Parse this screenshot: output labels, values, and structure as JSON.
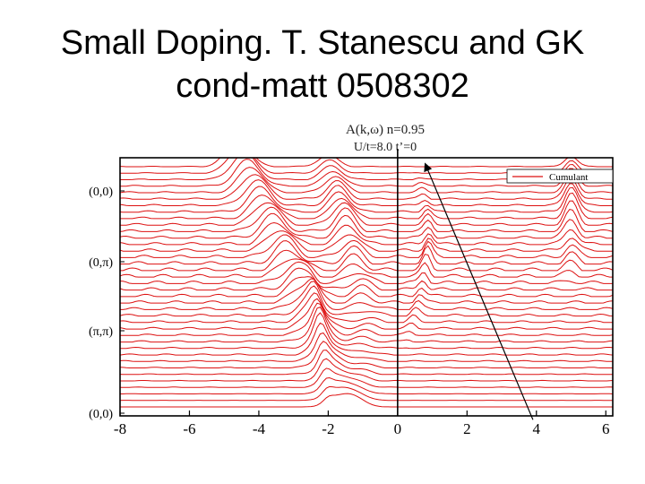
{
  "slide": {
    "title_line1": "Small Doping. T. Stanescu and GK",
    "title_line2": "cond-matt 0508302"
  },
  "chart_data": {
    "type": "line",
    "title": "A(k,ω) n=0.95",
    "subtitle": "U/t=8.0 t’=0",
    "xlabel": "",
    "ylabel": "",
    "xlim": [
      -8,
      6.2
    ],
    "x_ticks": [
      -8,
      -6,
      -4,
      -2,
      0,
      2,
      4,
      6
    ],
    "x_tick_labels": [
      "-8",
      "-6",
      "-4",
      "-2",
      "0",
      "2",
      "4",
      "6"
    ],
    "y_tick_labels": [
      "(0,0)",
      "(0,π)",
      "(π,π)",
      "(0,0)"
    ],
    "grid": false,
    "legend_position": "top-right",
    "series": [
      {
        "name": "Cumulant",
        "color": "#dd1111",
        "curve_count": 38
      }
    ],
    "reference_line_x": 0,
    "arrow_from": [
      3.9,
      -0.3
    ],
    "arrow_to": [
      0.8,
      19.5
    ]
  },
  "colors": {
    "curve": "#dd1111",
    "axis": "#000000",
    "arrow": "#000000"
  }
}
